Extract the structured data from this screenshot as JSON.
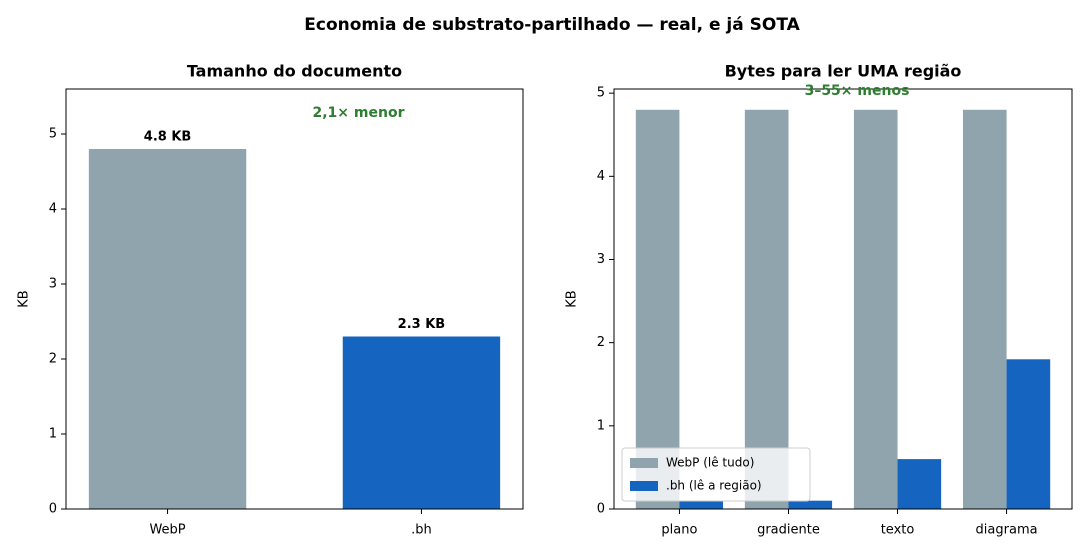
{
  "title": "Economia de substrato-partilhado — real, e já SOTA",
  "chart_data": [
    {
      "type": "bar",
      "title": "Tamanho do documento",
      "ylabel": "KB",
      "categories": [
        "WebP",
        ".bh"
      ],
      "values": [
        4.8,
        2.3
      ],
      "value_labels": [
        "4.8 KB",
        "2.3 KB"
      ],
      "colors": [
        "#90a4ae",
        "#1565c0"
      ],
      "ylim": [
        0,
        5.6
      ],
      "yticks": [
        0,
        1,
        2,
        3,
        4,
        5
      ],
      "annotation": "2,1× menor",
      "annotation_color": "#2e7d32"
    },
    {
      "type": "bar",
      "title": "Bytes para ler UMA região",
      "ylabel": "KB",
      "categories": [
        "plano",
        "gradiente",
        "texto",
        "diagrama"
      ],
      "series": [
        {
          "name": "WebP (lê tudo)",
          "color": "#90a4ae",
          "values": [
            4.8,
            4.8,
            4.8,
            4.8
          ]
        },
        {
          "name": ".bh (lê a região)",
          "color": "#1565c0",
          "values": [
            0.1,
            0.1,
            0.6,
            1.8
          ]
        }
      ],
      "ylim": [
        0,
        5.05
      ],
      "yticks": [
        0,
        1,
        2,
        3,
        4,
        5
      ],
      "legend": "lower left",
      "annotation": "3–55× menos",
      "annotation_color": "#2e7d32"
    }
  ]
}
